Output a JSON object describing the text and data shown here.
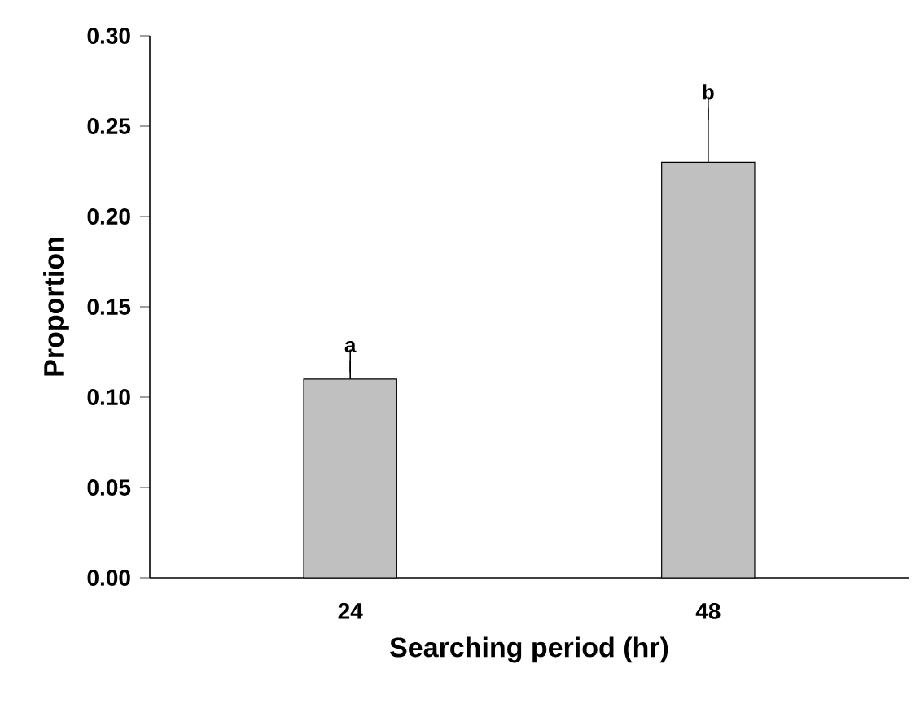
{
  "chart_data": {
    "type": "bar",
    "xlabel": "Searching period (hr)",
    "ylabel": "Proportion",
    "categories": [
      "24",
      "48"
    ],
    "values": [
      0.11,
      0.23
    ],
    "errors": [
      [
        0.11,
        0.12
      ],
      [
        0.23,
        0.26
      ]
    ],
    "color": "#c0c0c0",
    "ylim": [
      0,
      0.3
    ],
    "yticks": [
      {
        "value": 0,
        "label": "0.00"
      },
      {
        "value": 0.05,
        "label": "0.05"
      },
      {
        "value": 0.1,
        "label": "0.10"
      },
      {
        "value": 0.15,
        "label": "0.15"
      },
      {
        "value": 0.2,
        "label": "0.20"
      },
      {
        "value": 0.25,
        "label": "0.25"
      },
      {
        "value": 0.3,
        "label": "0.30"
      }
    ],
    "annotations": [
      {
        "text": "a",
        "x": "24",
        "y": 0.12
      },
      {
        "text": "b",
        "x": "48",
        "y": 0.26
      }
    ]
  }
}
